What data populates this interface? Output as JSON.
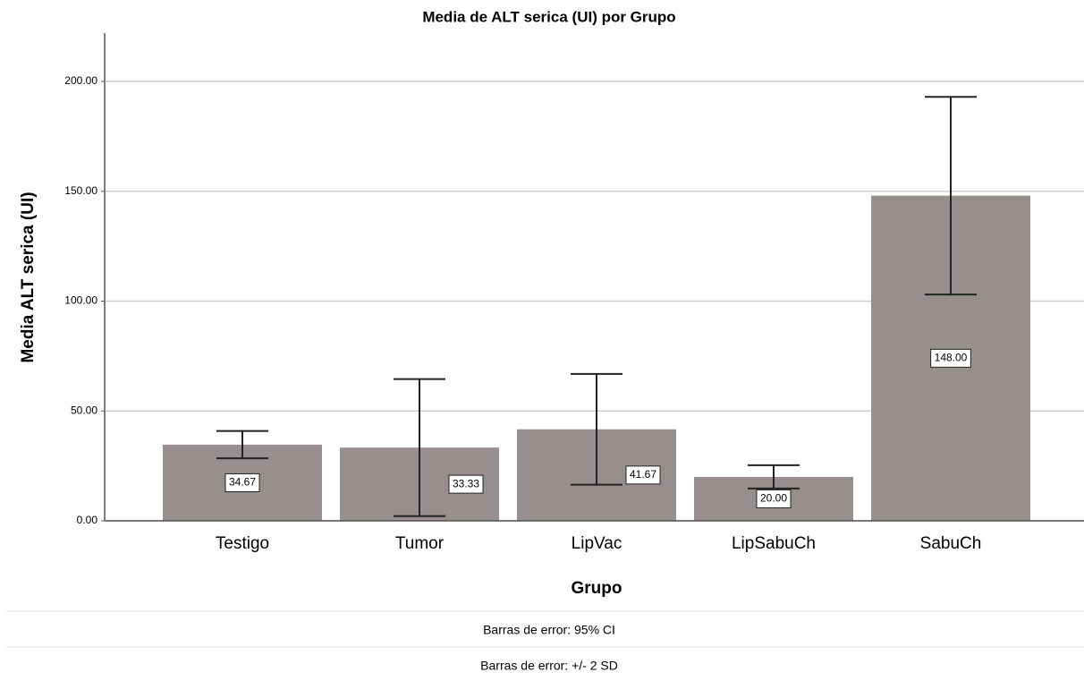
{
  "chart_data": {
    "type": "bar",
    "title": "Media de ALT serica (UI) por Grupo",
    "x_label": "Grupo",
    "y_label": "Media ALT serica (UI)",
    "categories": [
      "Testigo",
      "Tumor",
      "LipVac",
      "LipSabuCh",
      "SabuCh"
    ],
    "values": [
      34.67,
      33.33,
      41.67,
      20,
      148
    ],
    "value_labels": [
      "34.67",
      "33.33",
      "41.67",
      "20.00",
      "148.00"
    ],
    "errors": [
      6.2,
      31.2,
      25.2,
      5.3,
      45
    ],
    "color": "#968f8e",
    "ylim": [
      0,
      222
    ],
    "yticks": [
      {
        "value": 0,
        "label": "0.00"
      },
      {
        "value": 50,
        "label": "50.00"
      },
      {
        "value": 100,
        "label": "100.00"
      },
      {
        "value": 150,
        "label": "150.00"
      },
      {
        "value": 200,
        "label": "200.00"
      }
    ],
    "grid": true,
    "footnotes": [
      "Barras de error: 95% CI",
      "Barras de error: +/- 2 SD"
    ]
  }
}
